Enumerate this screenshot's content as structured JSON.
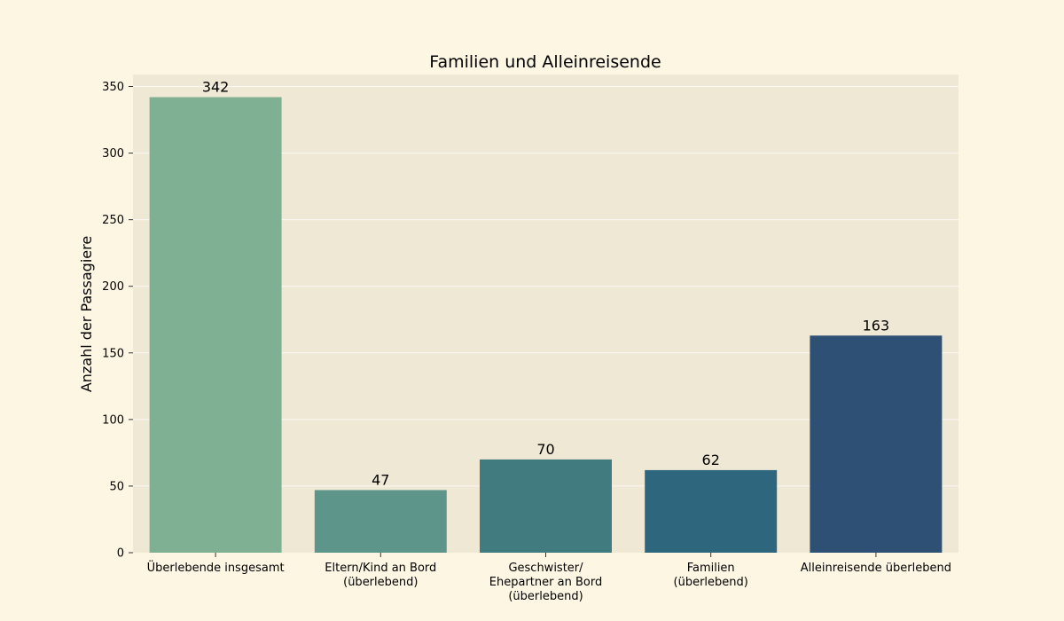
{
  "chart_data": {
    "type": "bar",
    "title": "Familien und Alleinreisende",
    "xlabel": "",
    "ylabel": "Anzahl der Passagiere",
    "categories": [
      [
        "Überlebende insgesamt"
      ],
      [
        "Eltern/Kind an Bord",
        "(überlebend)"
      ],
      [
        "Geschwister/",
        "Ehepartner an Bord",
        "(überlebend)"
      ],
      [
        "Familien",
        "(überlebend)"
      ],
      [
        "Alleinreisende überlebend"
      ]
    ],
    "values": [
      342,
      47,
      70,
      62,
      163
    ],
    "data_labels": [
      "342",
      "47",
      "70",
      "62",
      "163"
    ],
    "ylim": [
      0,
      359
    ],
    "yticks": [
      0,
      50,
      100,
      150,
      200,
      250,
      300,
      350
    ],
    "grid": "horizontal",
    "colors": [
      "#7fb093",
      "#5d958b",
      "#417b80",
      "#2e677d",
      "#2f5075"
    ],
    "background": "#fdf6e3",
    "plot_background": "#eee8d5"
  }
}
